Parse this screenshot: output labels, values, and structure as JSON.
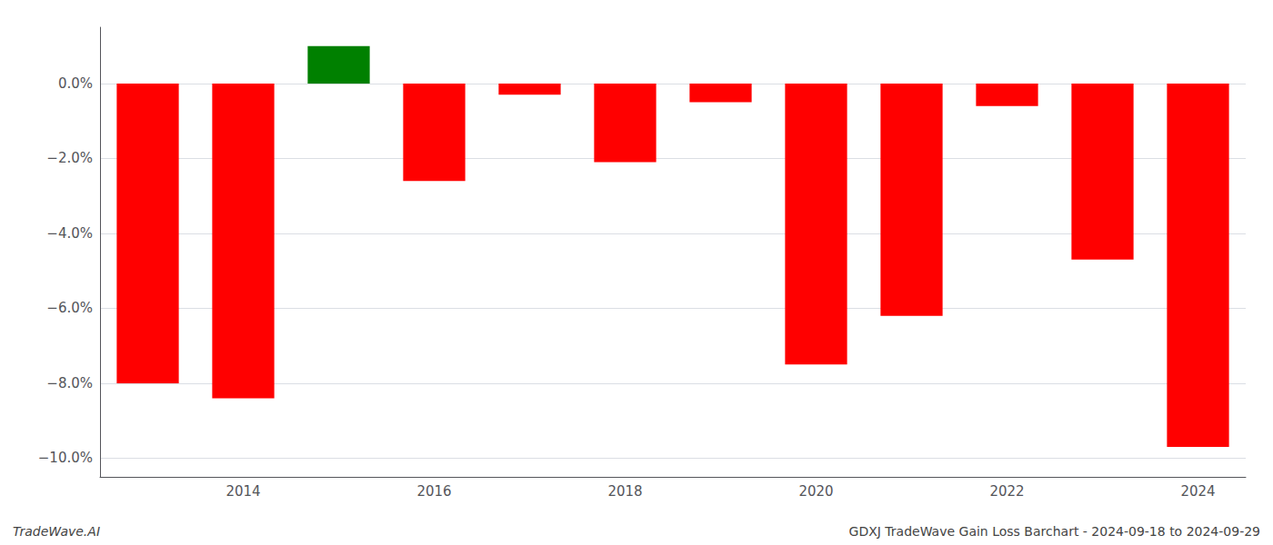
{
  "chart_data": {
    "type": "bar",
    "categories": [
      null,
      "2014",
      null,
      "2016",
      null,
      "2018",
      null,
      "2020",
      null,
      "2022",
      null,
      "2024"
    ],
    "values": [
      -8.0,
      -8.4,
      1.0,
      -2.6,
      -0.3,
      -2.1,
      -0.5,
      -7.5,
      -6.2,
      -0.6,
      -4.7,
      -9.7
    ],
    "colors": [
      "#ff0000",
      "#ff0000",
      "#008000",
      "#ff0000",
      "#ff0000",
      "#ff0000",
      "#ff0000",
      "#ff0000",
      "#ff0000",
      "#ff0000",
      "#ff0000",
      "#ff0000"
    ],
    "ylim": [
      -10.5,
      1.5
    ],
    "yticks": [
      {
        "value": 0.0,
        "label": "0.0%"
      },
      {
        "value": -2.0,
        "label": "−2.0%"
      },
      {
        "value": -4.0,
        "label": "−4.0%"
      },
      {
        "value": -6.0,
        "label": "−6.0%"
      },
      {
        "value": -8.0,
        "label": "−8.0%"
      },
      {
        "value": -10.0,
        "label": "−10.0%"
      }
    ],
    "grid": true,
    "annotations": [
      "TradeWave.AI",
      "GDXJ TradeWave Gain Loss Barchart - 2024-09-18 to 2024-09-29"
    ]
  }
}
